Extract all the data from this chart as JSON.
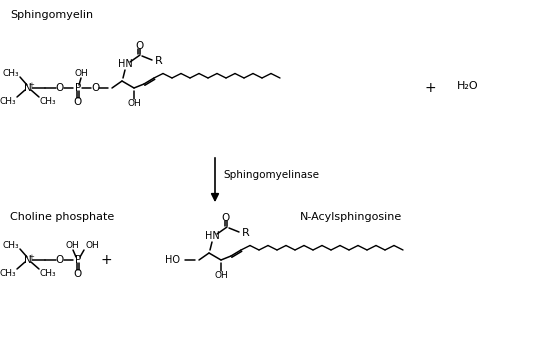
{
  "background_color": "#ffffff",
  "text_color": "#000000",
  "figsize": [
    5.43,
    3.6
  ],
  "dpi": 100,
  "labels": {
    "sphingomyelin": "Sphingomyelin",
    "enzyme": "Sphingomyelinase",
    "choline_phosphate": "Choline phosphate",
    "n_acyl": "N-Acylsphingosine",
    "water": "H₂O",
    "plus": "+"
  }
}
